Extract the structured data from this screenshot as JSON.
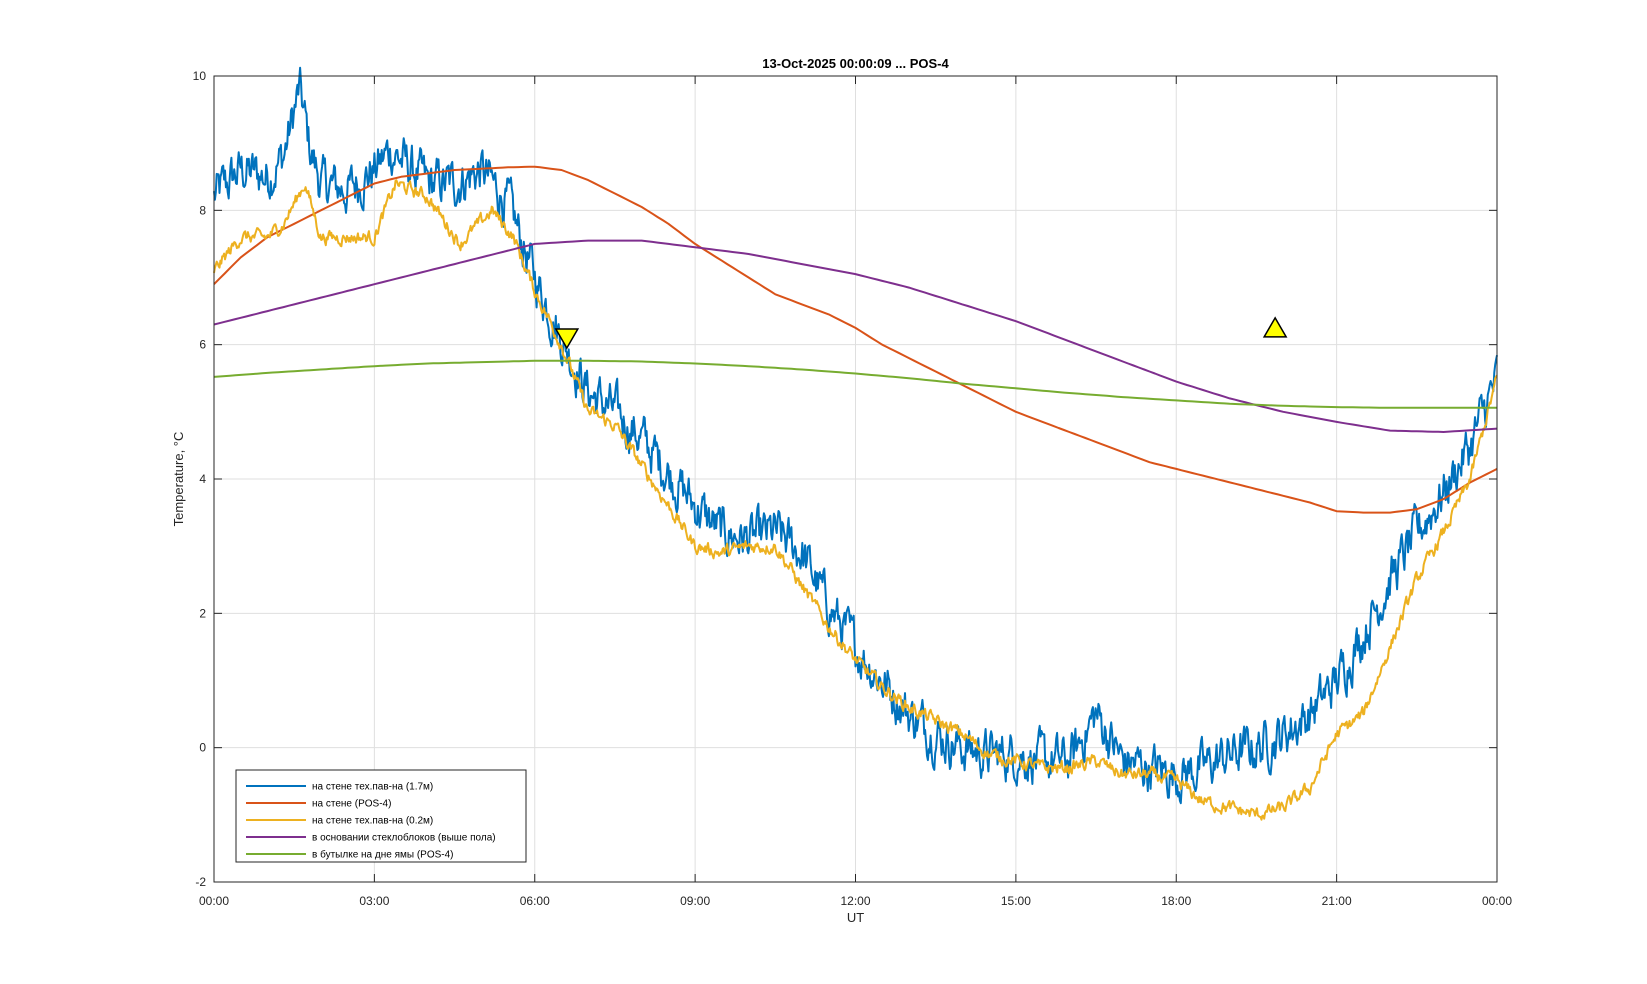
{
  "chart_data": {
    "type": "line",
    "title": "13-Oct-2025 00:00:09 ... POS-4",
    "xlabel": "UT",
    "ylabel": "Temperature, °C",
    "xlim": [
      0,
      24
    ],
    "ylim": [
      -2,
      10
    ],
    "x_ticks": [
      {
        "value": 0,
        "label": "00:00"
      },
      {
        "value": 3,
        "label": "03:00"
      },
      {
        "value": 6,
        "label": "06:00"
      },
      {
        "value": 9,
        "label": "09:00"
      },
      {
        "value": 12,
        "label": "12:00"
      },
      {
        "value": 15,
        "label": "15:00"
      },
      {
        "value": 18,
        "label": "18:00"
      },
      {
        "value": 21,
        "label": "21:00"
      },
      {
        "value": 24,
        "label": "00:00"
      }
    ],
    "y_ticks": [
      {
        "value": -2,
        "label": "-2"
      },
      {
        "value": 0,
        "label": "0"
      },
      {
        "value": 2,
        "label": "2"
      },
      {
        "value": 4,
        "label": "4"
      },
      {
        "value": 6,
        "label": "6"
      },
      {
        "value": 8,
        "label": "8"
      },
      {
        "value": 10,
        "label": "10"
      }
    ],
    "grid": true,
    "legend_position": "bottom-left",
    "series": [
      {
        "name": "на стене тех.пав-на (1.7м)",
        "color": "#0072BD",
        "noise": 0.35,
        "x": [
          0,
          0.5,
          1,
          1.3,
          1.6,
          1.8,
          2,
          2.5,
          3,
          3.3,
          4,
          4.5,
          5,
          5.5,
          6,
          6.5,
          7,
          7.5,
          8,
          8.5,
          9,
          9.5,
          10,
          10.5,
          11,
          11.5,
          12,
          12.5,
          13,
          13.5,
          14,
          14.5,
          15,
          15.5,
          16,
          16.5,
          17,
          17.5,
          18,
          18.5,
          19,
          19.5,
          20,
          20.5,
          21,
          21.5,
          22,
          22.5,
          23,
          23.5,
          24
        ],
        "y": [
          8.2,
          8.6,
          8.5,
          8.8,
          9.8,
          8.9,
          8.4,
          8.3,
          8.6,
          8.9,
          8.4,
          8.4,
          8.6,
          8.1,
          7.0,
          6.1,
          5.3,
          5.0,
          4.6,
          4.1,
          3.6,
          3.2,
          3.1,
          3.2,
          2.9,
          2.1,
          1.5,
          1.0,
          0.5,
          0.2,
          0.0,
          -0.1,
          -0.1,
          -0.2,
          -0.2,
          0.5,
          -0.2,
          -0.3,
          -0.4,
          -0.3,
          -0.1,
          0.0,
          0.2,
          0.5,
          1.0,
          1.7,
          2.5,
          3.2,
          3.8,
          4.5,
          5.5
        ]
      },
      {
        "name": "на стене (POS-4)",
        "color": "#D95319",
        "noise": 0,
        "x": [
          0,
          0.5,
          1,
          1.5,
          2,
          2.5,
          3,
          3.5,
          4,
          4.5,
          5,
          5.5,
          6,
          6.5,
          7,
          7.5,
          8,
          8.5,
          9,
          9.5,
          10,
          10.5,
          11,
          11.5,
          12,
          12.5,
          13,
          13.5,
          14,
          14.5,
          15,
          15.5,
          16,
          16.5,
          17,
          17.5,
          18,
          18.5,
          19,
          19.5,
          20,
          20.5,
          21,
          21.5,
          22,
          22.5,
          23,
          23.5,
          24
        ],
        "y": [
          6.9,
          7.3,
          7.6,
          7.8,
          8.0,
          8.2,
          8.4,
          8.5,
          8.55,
          8.6,
          8.62,
          8.64,
          8.65,
          8.6,
          8.45,
          8.25,
          8.05,
          7.8,
          7.5,
          7.25,
          7.0,
          6.75,
          6.6,
          6.45,
          6.25,
          6.0,
          5.8,
          5.6,
          5.4,
          5.2,
          5.0,
          4.85,
          4.7,
          4.55,
          4.4,
          4.25,
          4.15,
          4.05,
          3.95,
          3.85,
          3.75,
          3.65,
          3.52,
          3.5,
          3.5,
          3.55,
          3.7,
          3.95,
          4.15
        ]
      },
      {
        "name": "на стене тех.пав-на (0.2м)",
        "color": "#EDB120",
        "noise": 0.1,
        "x": [
          0,
          0.5,
          1,
          1.3,
          1.7,
          2,
          2.5,
          3,
          3.4,
          4,
          4.6,
          5.2,
          5.6,
          6,
          6.5,
          7,
          7.5,
          8,
          8.5,
          9,
          9.5,
          10,
          10.5,
          11,
          11.5,
          12,
          12.5,
          13,
          13.5,
          14,
          14.5,
          15,
          15.5,
          16,
          16.5,
          17,
          17.5,
          18,
          18.5,
          19,
          19.5,
          20,
          20.5,
          21,
          21.5,
          22,
          22.5,
          23,
          23.5,
          24
        ],
        "y": [
          7.1,
          7.6,
          7.6,
          7.8,
          8.4,
          7.6,
          7.6,
          7.6,
          8.4,
          8.2,
          7.5,
          8.0,
          7.6,
          6.8,
          6.0,
          5.0,
          4.8,
          4.2,
          3.6,
          3.0,
          2.9,
          3.0,
          3.0,
          2.4,
          1.8,
          1.3,
          0.9,
          0.6,
          0.4,
          0.2,
          -0.1,
          -0.2,
          -0.3,
          -0.3,
          -0.2,
          -0.4,
          -0.4,
          -0.5,
          -0.8,
          -0.9,
          -1.0,
          -0.9,
          -0.6,
          0.2,
          0.5,
          1.5,
          2.5,
          3.2,
          4.0,
          5.5
        ]
      },
      {
        "name": "в основании стеклоблоков (выше пола)",
        "color": "#7E2F8E",
        "noise": 0,
        "x": [
          0,
          1,
          2,
          3,
          4,
          5,
          6,
          7,
          8,
          9,
          10,
          11,
          12,
          13,
          14,
          15,
          16,
          17,
          18,
          19,
          20,
          21,
          22,
          23,
          24
        ],
        "y": [
          6.3,
          6.5,
          6.7,
          6.9,
          7.1,
          7.3,
          7.5,
          7.55,
          7.55,
          7.45,
          7.35,
          7.2,
          7.05,
          6.85,
          6.6,
          6.35,
          6.05,
          5.75,
          5.45,
          5.2,
          5.0,
          4.85,
          4.72,
          4.7,
          4.75
        ]
      },
      {
        "name": "в бутылке на дне ямы (POS-4)",
        "color": "#77AC30",
        "noise": 0,
        "x": [
          0,
          1,
          2,
          3,
          4,
          5,
          6,
          7,
          8,
          9,
          10,
          11,
          12,
          13,
          14,
          15,
          16,
          17,
          18,
          19,
          20,
          21,
          22,
          23,
          24
        ],
        "y": [
          5.52,
          5.58,
          5.63,
          5.68,
          5.72,
          5.74,
          5.76,
          5.76,
          5.75,
          5.72,
          5.68,
          5.63,
          5.57,
          5.5,
          5.42,
          5.35,
          5.28,
          5.22,
          5.17,
          5.12,
          5.09,
          5.07,
          5.06,
          5.06,
          5.06
        ]
      }
    ],
    "markers": [
      {
        "shape": "triangle-down",
        "x": 6.6,
        "y": 6.1,
        "color": "#FFFF00"
      },
      {
        "shape": "triangle-up",
        "x": 19.85,
        "y": 6.25,
        "color": "#FFFF00"
      }
    ]
  }
}
